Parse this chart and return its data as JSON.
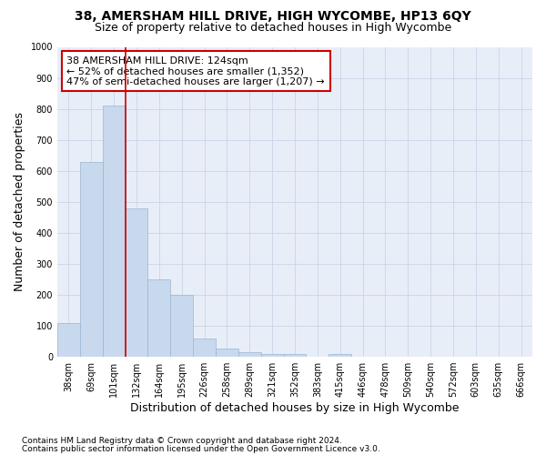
{
  "title": "38, AMERSHAM HILL DRIVE, HIGH WYCOMBE, HP13 6QY",
  "subtitle": "Size of property relative to detached houses in High Wycombe",
  "xlabel": "Distribution of detached houses by size in High Wycombe",
  "ylabel": "Number of detached properties",
  "footer_line1": "Contains HM Land Registry data © Crown copyright and database right 2024.",
  "footer_line2": "Contains public sector information licensed under the Open Government Licence v3.0.",
  "categories": [
    "38sqm",
    "69sqm",
    "101sqm",
    "132sqm",
    "164sqm",
    "195sqm",
    "226sqm",
    "258sqm",
    "289sqm",
    "321sqm",
    "352sqm",
    "383sqm",
    "415sqm",
    "446sqm",
    "478sqm",
    "509sqm",
    "540sqm",
    "572sqm",
    "603sqm",
    "635sqm",
    "666sqm"
  ],
  "values": [
    110,
    630,
    810,
    480,
    250,
    200,
    60,
    28,
    15,
    10,
    10,
    0,
    10,
    0,
    0,
    0,
    0,
    0,
    0,
    0,
    0
  ],
  "bar_color": "#c8d9ed",
  "bar_edge_color": "#9ab5d4",
  "highlight_index": 3,
  "highlight_line_color": "#cc0000",
  "annotation_text": "38 AMERSHAM HILL DRIVE: 124sqm\n← 52% of detached houses are smaller (1,352)\n47% of semi-detached houses are larger (1,207) →",
  "annotation_box_color": "#ffffff",
  "annotation_box_edge": "#cc0000",
  "ylim": [
    0,
    1000
  ],
  "yticks": [
    0,
    100,
    200,
    300,
    400,
    500,
    600,
    700,
    800,
    900,
    1000
  ],
  "plot_bg_color": "#e8eef8",
  "background_color": "#ffffff",
  "grid_color": "#c8d4e8",
  "title_fontsize": 10,
  "subtitle_fontsize": 9,
  "axis_label_fontsize": 9,
  "tick_fontsize": 7,
  "annotation_fontsize": 8,
  "footer_fontsize": 6.5
}
